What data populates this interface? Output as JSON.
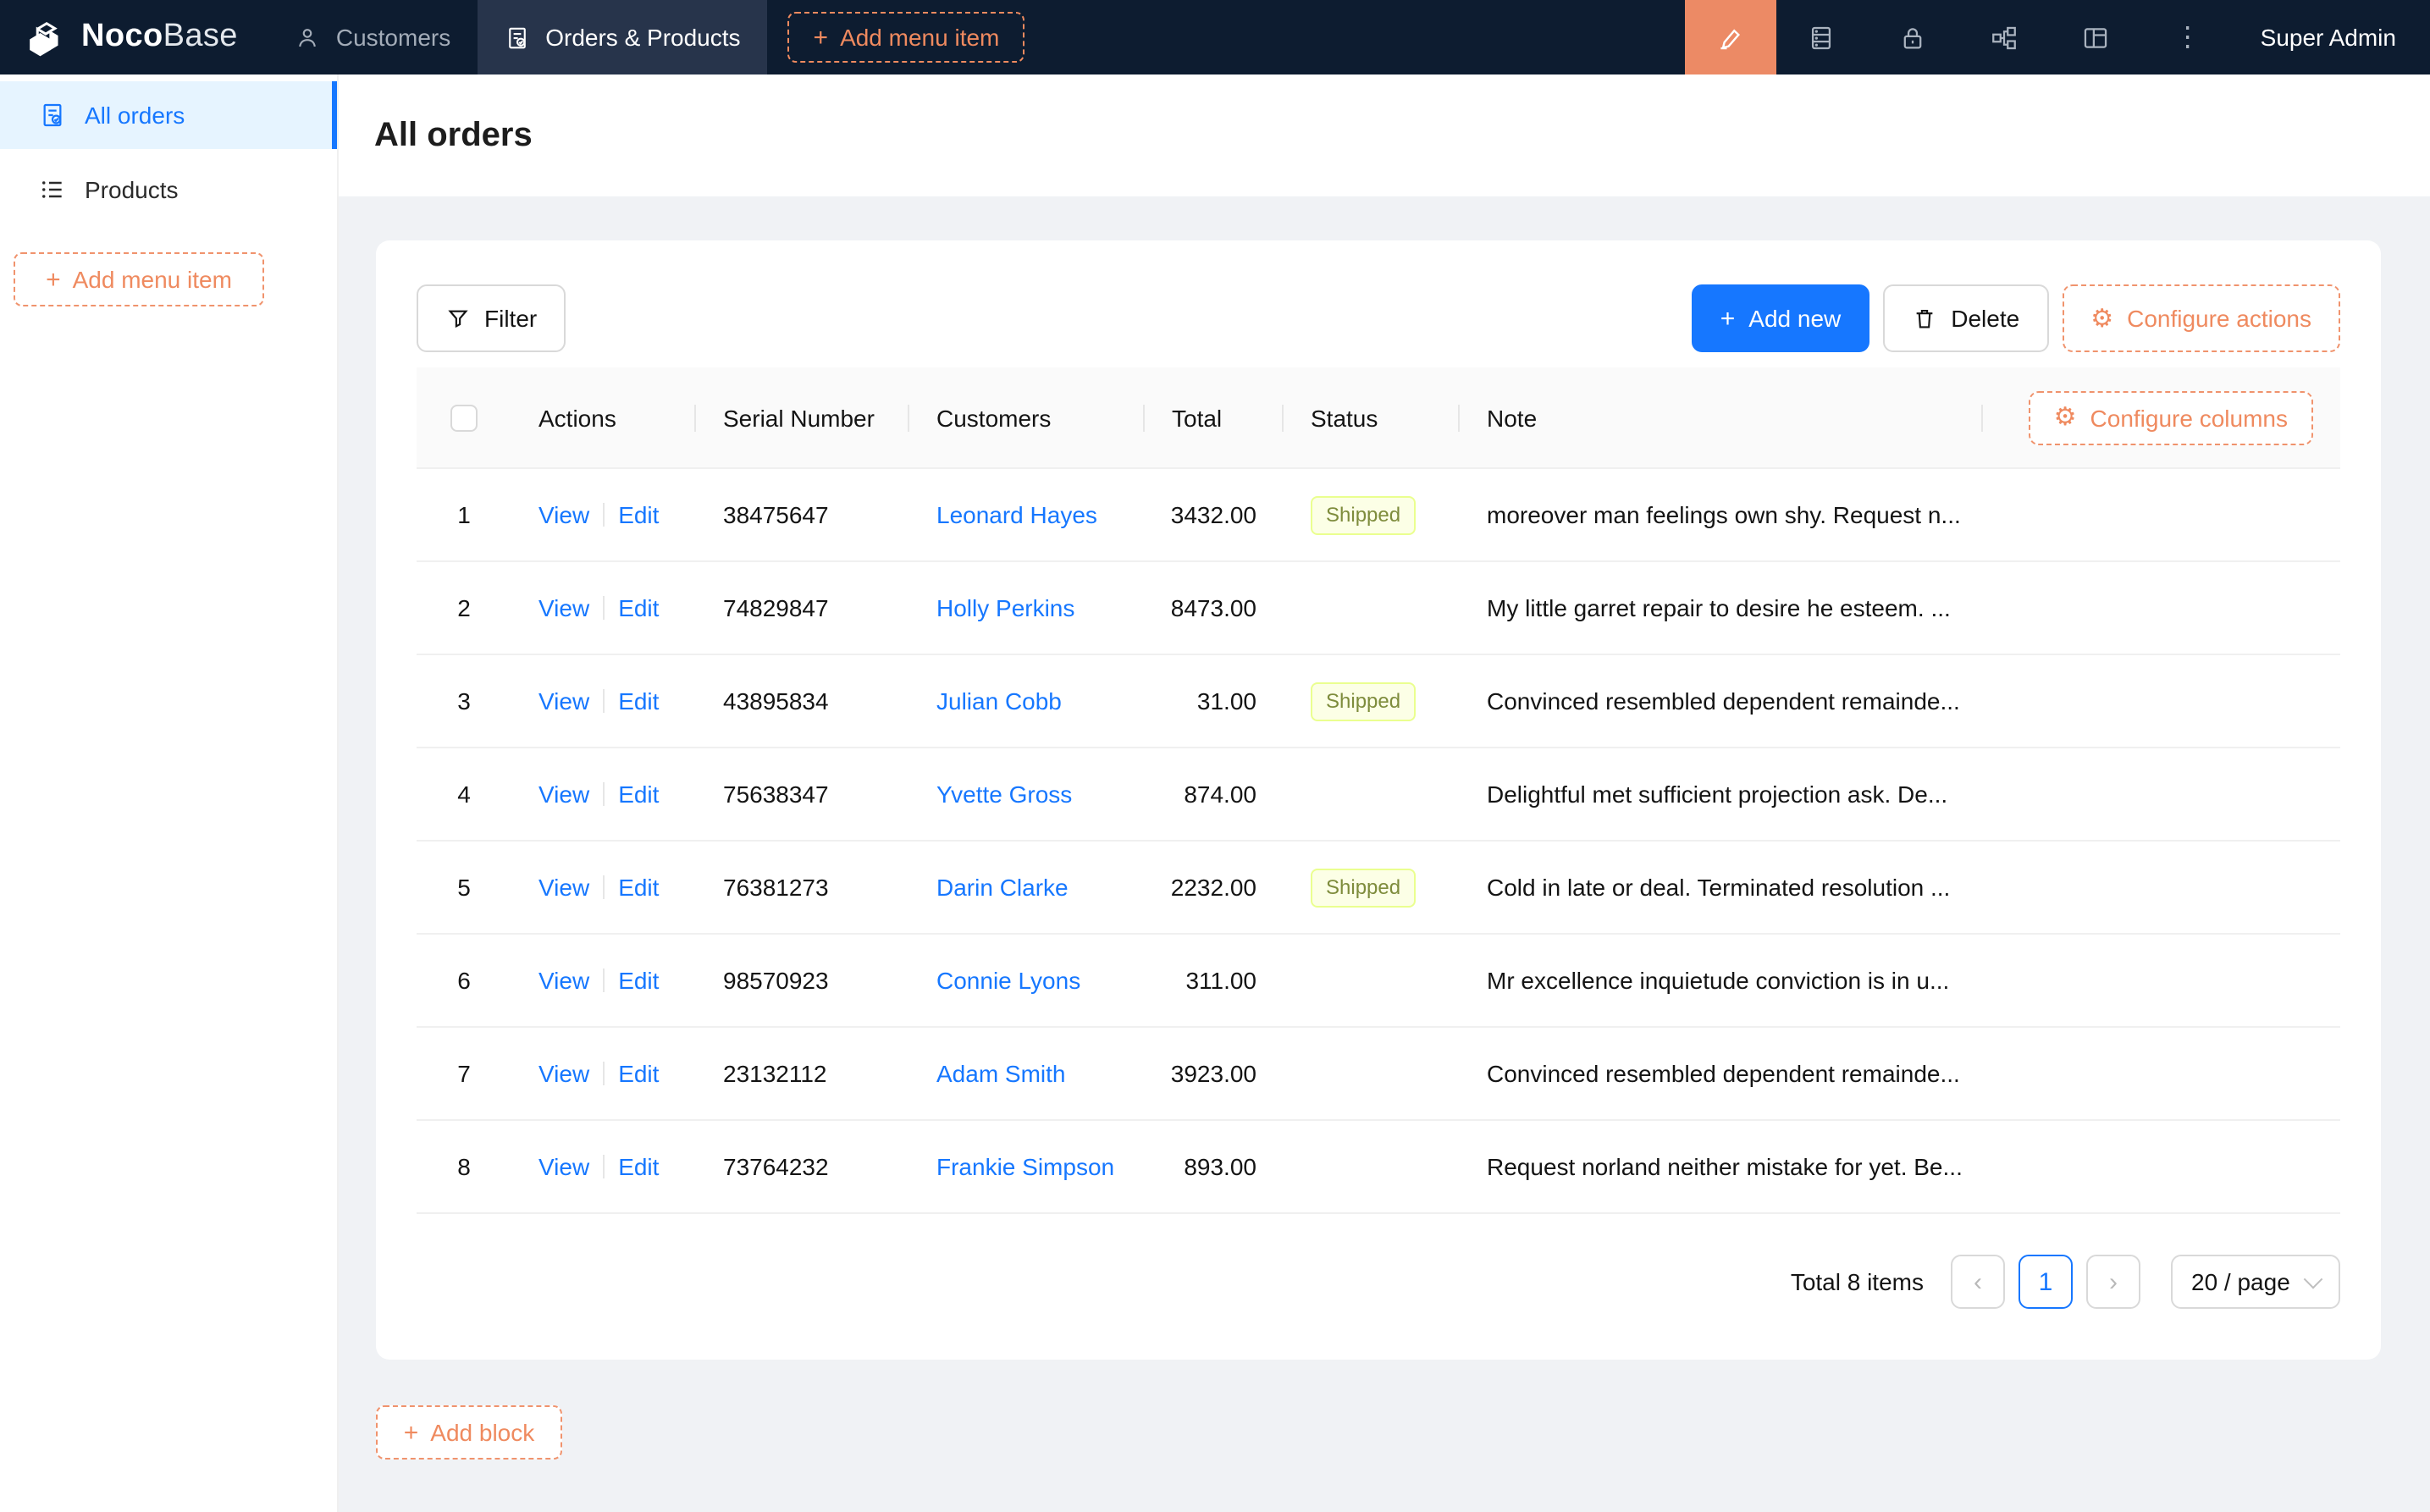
{
  "colors": {
    "navbar_bg": "#0d1c30",
    "navbar_active_tab_bg": "#27344b",
    "accent_orange": "#ef8a5f",
    "ui_editor_block_bg": "#ec8a65",
    "primary_blue": "#1677ff",
    "sidebar_active_bg": "#e6f4ff",
    "page_bg": "#f0f2f5",
    "tag_shipped_bg": "#fcffe6",
    "tag_shipped_border": "#eaff8f",
    "tag_shipped_text": "#7e8c3c"
  },
  "glyphs": {
    "plus": "+",
    "gear": "⚙",
    "ellipsis": "⋮",
    "chevron_left": "‹",
    "chevron_right": "›"
  },
  "nav": {
    "brand_bold": "Noco",
    "brand_light": "Base",
    "tabs": [
      {
        "label": "Customers",
        "icon": "user-icon",
        "active": false
      },
      {
        "label": "Orders & Products",
        "icon": "file-done-icon",
        "active": true
      }
    ],
    "add_menu_item_label": "Add menu item",
    "right_icons": [
      "ui-editor-highlighter-icon",
      "database-icon",
      "lock-icon",
      "partition-icon",
      "layout-icon",
      "ellipsis-icon"
    ],
    "user": "Super Admin"
  },
  "sidebar": {
    "items": [
      {
        "label": "All orders",
        "icon": "file-done-icon",
        "active": true
      },
      {
        "label": "Products",
        "icon": "list-icon",
        "active": false
      }
    ],
    "add_menu_item_label": "Add menu item"
  },
  "page": {
    "title": "All orders"
  },
  "toolbar": {
    "filter_label": "Filter",
    "add_new_label": "Add new",
    "delete_label": "Delete",
    "configure_actions_label": "Configure actions"
  },
  "table": {
    "configure_columns_label": "Configure columns",
    "columns": [
      "Actions",
      "Serial Number",
      "Customers",
      "Total",
      "Status",
      "Note"
    ],
    "view_label": "View",
    "edit_label": "Edit",
    "rows": [
      {
        "index": "1",
        "serial": "38475647",
        "customer": "Leonard Hayes",
        "total": "3432.00",
        "status": "Shipped",
        "note": "moreover man feelings own shy. Request n..."
      },
      {
        "index": "2",
        "serial": "74829847",
        "customer": "Holly Perkins",
        "total": "8473.00",
        "status": "",
        "note": "My little garret repair to desire he esteem. ..."
      },
      {
        "index": "3",
        "serial": "43895834",
        "customer": "Julian Cobb",
        "total": "31.00",
        "status": "Shipped",
        "note": "Convinced resembled dependent remainde..."
      },
      {
        "index": "4",
        "serial": "75638347",
        "customer": "Yvette Gross",
        "total": "874.00",
        "status": "",
        "note": "Delightful met sufficient projection ask. De..."
      },
      {
        "index": "5",
        "serial": "76381273",
        "customer": "Darin Clarke",
        "total": "2232.00",
        "status": "Shipped",
        "note": "Cold in late or deal. Terminated resolution ..."
      },
      {
        "index": "6",
        "serial": "98570923",
        "customer": "Connie Lyons",
        "total": "311.00",
        "status": "",
        "note": "Mr excellence inquietude conviction is in u..."
      },
      {
        "index": "7",
        "serial": "23132112",
        "customer": "Adam Smith",
        "total": "3923.00",
        "status": "",
        "note": "Convinced resembled dependent remainde..."
      },
      {
        "index": "8",
        "serial": "73764232",
        "customer": "Frankie Simpson",
        "total": "893.00",
        "status": "",
        "note": "Request norland neither mistake for yet. Be..."
      }
    ]
  },
  "pagination": {
    "total_label": "Total 8 items",
    "current_page": "1",
    "page_size_label": "20 / page"
  },
  "add_block_label": "Add block"
}
